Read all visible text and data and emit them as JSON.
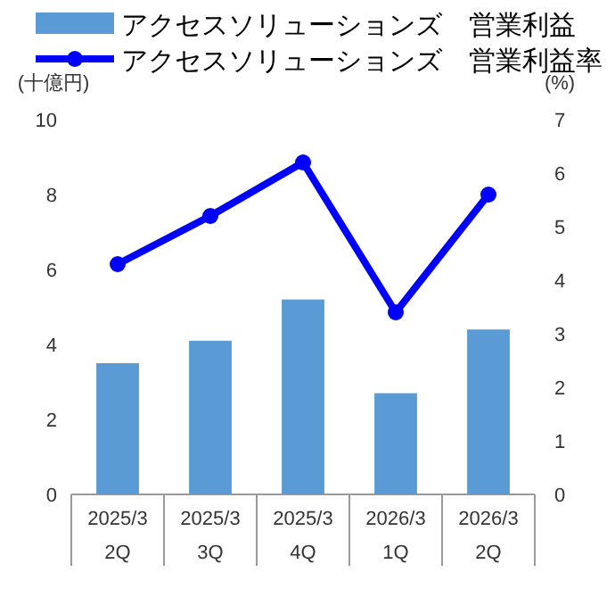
{
  "chart_data": {
    "type": "bar",
    "ylabel": "(十億円)",
    "y2label": "(%)",
    "categories": [
      "2025/3\n2Q",
      "2025/3\n3Q",
      "2025/3\n4Q",
      "2026/3\n1Q",
      "2026/3\n2Q"
    ],
    "series": [
      {
        "name": "アクセスソリューションズ　営業利益",
        "color": "#5b9bd5",
        "values": [
          3.5,
          4.1,
          5.2,
          2.7,
          4.4
        ]
      },
      {
        "name": "アクセスソリューションズ　営業利益率",
        "type": "line",
        "axis": "y2",
        "color": "#0000ff",
        "marker": "circle",
        "values": [
          4.3,
          5.2,
          6.2,
          3.4,
          5.6
        ]
      }
    ],
    "ylim": [
      0,
      10
    ],
    "yticks": [
      0,
      2,
      4,
      6,
      8,
      10
    ],
    "y2lim": [
      0,
      7
    ],
    "y2ticks": [
      0,
      1,
      2,
      3,
      4,
      5,
      6,
      7
    ],
    "legend": "top"
  }
}
